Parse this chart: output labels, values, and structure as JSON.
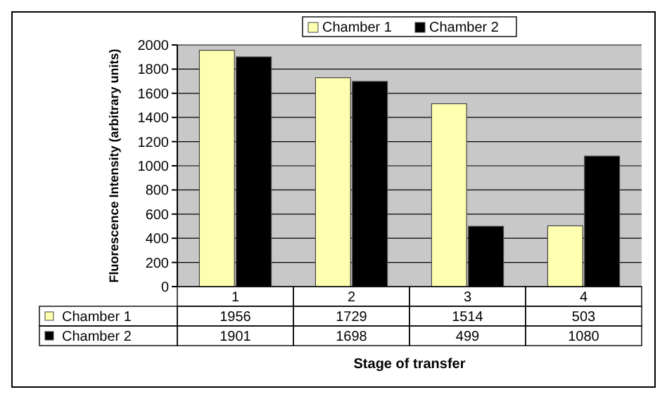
{
  "chart_data": {
    "type": "bar",
    "xlabel": "Stage of transfer",
    "ylabel": "Fluorescence Intensity (arbitrary units)",
    "categories": [
      "1",
      "2",
      "3",
      "4"
    ],
    "series": [
      {
        "name": "Chamber 1",
        "color": "#ffffb0",
        "values": [
          1956,
          1729,
          1514,
          503
        ]
      },
      {
        "name": "Chamber 2",
        "color": "#000000",
        "values": [
          1901,
          1698,
          499,
          1080
        ]
      }
    ],
    "ylim": [
      0,
      2000
    ],
    "yticks": [
      0,
      200,
      400,
      600,
      800,
      1000,
      1200,
      1400,
      1600,
      1800,
      2000
    ],
    "grid": "y",
    "legend": "top",
    "data_labels": true
  }
}
